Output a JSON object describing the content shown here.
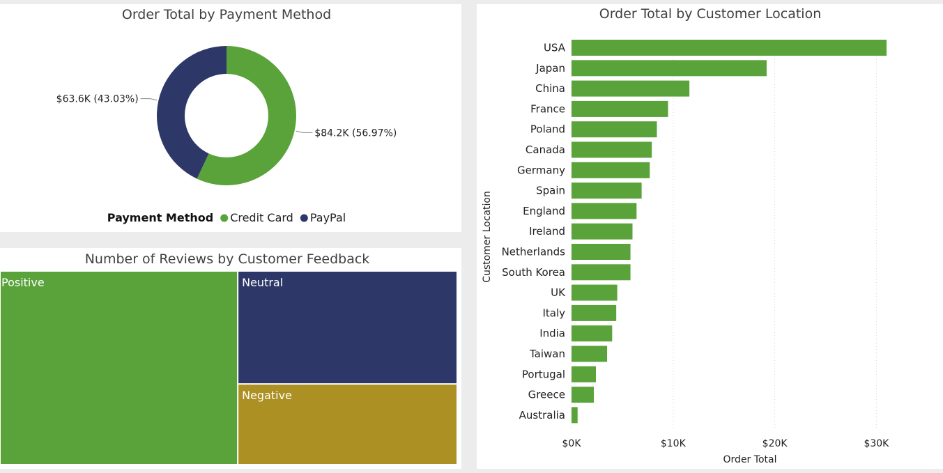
{
  "colors": {
    "green": "#5aa33a",
    "navy": "#2d3869",
    "gold": "#ad9024"
  },
  "chart_data": [
    {
      "type": "pie",
      "subtype": "donut",
      "title": "Order Total by Payment Method",
      "legend_title": "Payment Method",
      "legend_position": "bottom",
      "slices": [
        {
          "name": "Credit Card",
          "value": 84.2,
          "percent": 56.97,
          "label": "$84.2K (56.97%)",
          "color": "#5aa33a"
        },
        {
          "name": "PayPal",
          "value": 63.6,
          "percent": 43.03,
          "label": "$63.6K (43.03%)",
          "color": "#2d3869"
        }
      ]
    },
    {
      "type": "treemap",
      "title": "Number of Reviews by Customer Feedback",
      "items": [
        {
          "name": "Positive",
          "value": 52,
          "color": "#5aa33a"
        },
        {
          "name": "Neutral",
          "value": 28,
          "color": "#2d3869"
        },
        {
          "name": "Negative",
          "value": 20,
          "color": "#ad9024"
        }
      ]
    },
    {
      "type": "bar",
      "orientation": "horizontal",
      "title": "Order Total by Customer Location",
      "xlabel": "Order Total",
      "ylabel": "Customer Location",
      "xlim": [
        0,
        31000
      ],
      "xticks": [
        0,
        10000,
        20000,
        30000
      ],
      "xtick_labels": [
        "$0K",
        "$10K",
        "$20K",
        "$30K"
      ],
      "grid": true,
      "color": "#5aa33a",
      "categories": [
        "USA",
        "Japan",
        "China",
        "France",
        "Poland",
        "Canada",
        "Germany",
        "Spain",
        "England",
        "Ireland",
        "Netherlands",
        "South Korea",
        "UK",
        "Italy",
        "India",
        "Taiwan",
        "Portugal",
        "Greece",
        "Australia"
      ],
      "values": [
        31000,
        19200,
        11600,
        9500,
        8400,
        7900,
        7700,
        6900,
        6400,
        6000,
        5800,
        5800,
        4500,
        4400,
        4000,
        3500,
        2400,
        2200,
        600
      ]
    }
  ]
}
